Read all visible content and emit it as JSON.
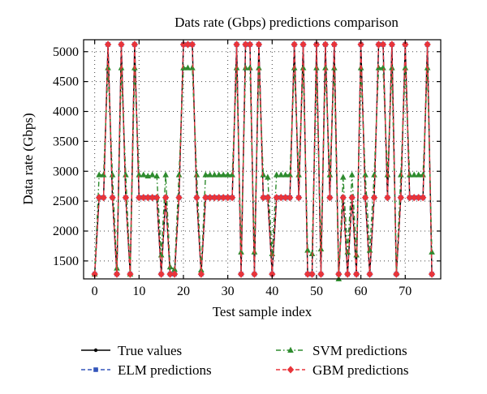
{
  "chart_data": {
    "type": "line",
    "title": "Dats rate (Gbps) predictions comparison",
    "xlabel": "Test sample index",
    "ylabel": "Data rate (Gbps)",
    "xlim": [
      -2.5,
      78
    ],
    "ylim": [
      1200,
      5200
    ],
    "x_ticks": [
      0,
      10,
      20,
      30,
      40,
      50,
      60,
      70
    ],
    "y_ticks": [
      1500,
      2000,
      2500,
      3000,
      3500,
      4000,
      4500,
      5000
    ],
    "grid": true,
    "x": [
      0,
      1,
      2,
      3,
      4,
      5,
      6,
      7,
      8,
      9,
      10,
      11,
      12,
      13,
      14,
      15,
      16,
      17,
      18,
      19,
      20,
      21,
      22,
      23,
      24,
      25,
      26,
      27,
      28,
      29,
      30,
      31,
      32,
      33,
      34,
      35,
      36,
      37,
      38,
      39,
      40,
      41,
      42,
      43,
      44,
      45,
      46,
      47,
      48,
      49,
      50,
      51,
      52,
      53,
      54,
      55,
      56,
      57,
      58,
      59,
      60,
      61,
      62,
      63,
      64,
      65,
      66,
      67,
      68,
      69,
      70,
      71,
      72,
      73,
      74,
      75,
      76
    ],
    "series": [
      {
        "name": "True values",
        "color": "#000000",
        "marker": "circle",
        "dash": "solid",
        "values": [
          1280,
          2560,
          2560,
          5120,
          2560,
          1280,
          5120,
          2560,
          1280,
          5120,
          2560,
          2560,
          2560,
          2560,
          2560,
          1280,
          2560,
          1280,
          1280,
          2560,
          5120,
          5120,
          5120,
          2560,
          1280,
          2560,
          2560,
          2560,
          2560,
          2560,
          2560,
          2560,
          5120,
          1280,
          5120,
          5120,
          1280,
          5120,
          2560,
          2560,
          1280,
          2560,
          2560,
          2560,
          2560,
          5120,
          2560,
          5120,
          1280,
          1280,
          5120,
          1280,
          5120,
          2560,
          5120,
          1280,
          2560,
          1280,
          2560,
          1280,
          5120,
          2560,
          1280,
          2560,
          5120,
          5120,
          2560,
          5120,
          1280,
          2560,
          5120,
          2560,
          2560,
          2560,
          2560,
          5120,
          1280
        ]
      },
      {
        "name": "ELM predictions",
        "color": "#3355bb",
        "marker": "square",
        "dash": "dashed",
        "values": [
          1280,
          2560,
          2560,
          5120,
          2560,
          1280,
          5120,
          2560,
          1280,
          5120,
          2560,
          2560,
          2560,
          2560,
          2560,
          1280,
          2560,
          1280,
          1280,
          2560,
          5120,
          5120,
          5120,
          2560,
          1280,
          2560,
          2560,
          2560,
          2560,
          2560,
          2560,
          2560,
          5120,
          1280,
          5120,
          5120,
          1280,
          5120,
          2560,
          2560,
          1280,
          2560,
          2560,
          2560,
          2560,
          5120,
          2560,
          5120,
          1280,
          1280,
          5120,
          1280,
          5120,
          2560,
          5120,
          1280,
          2560,
          1280,
          2560,
          1280,
          5120,
          2560,
          1280,
          2560,
          5120,
          5120,
          2560,
          5120,
          1280,
          2560,
          5120,
          2560,
          2560,
          2560,
          2560,
          5120,
          1280
        ]
      },
      {
        "name": "SVM predictions",
        "color": "#2e8b2e",
        "marker": "triangle",
        "dash": "dashdot",
        "values": [
          1280,
          2940,
          2940,
          4730,
          2940,
          1380,
          4730,
          2940,
          1280,
          4730,
          2940,
          2940,
          2920,
          2940,
          2920,
          1600,
          2940,
          1400,
          1360,
          2940,
          4730,
          4730,
          4730,
          2940,
          1350,
          2940,
          2940,
          2940,
          2940,
          2940,
          2940,
          2940,
          4730,
          1650,
          4730,
          4730,
          1650,
          4730,
          2940,
          2900,
          1620,
          2940,
          2940,
          2940,
          2940,
          4730,
          2940,
          4730,
          1680,
          1620,
          4730,
          1700,
          4730,
          2940,
          4730,
          1200,
          2900,
          1650,
          2940,
          1600,
          4730,
          2940,
          1680,
          2940,
          4730,
          4730,
          2940,
          4730,
          1300,
          2940,
          4730,
          2940,
          2940,
          2940,
          2940,
          4730,
          1650
        ]
      },
      {
        "name": "GBM predictions",
        "color": "#e8343a",
        "marker": "diamond",
        "dash": "dashed",
        "values": [
          1280,
          2560,
          2560,
          5120,
          2560,
          1280,
          5120,
          2560,
          1280,
          5120,
          2560,
          2560,
          2560,
          2560,
          2560,
          1280,
          2560,
          1280,
          1280,
          2560,
          5120,
          5120,
          5120,
          2560,
          1280,
          2560,
          2560,
          2560,
          2560,
          2560,
          2560,
          2560,
          5120,
          1280,
          5120,
          5120,
          1280,
          5120,
          2560,
          2560,
          1280,
          2560,
          2560,
          2560,
          2560,
          5120,
          2560,
          5120,
          1280,
          1280,
          5120,
          1280,
          5120,
          2560,
          5120,
          1280,
          2560,
          1280,
          2560,
          1280,
          5120,
          2560,
          1280,
          2560,
          5120,
          5120,
          2560,
          5120,
          1280,
          2560,
          5120,
          2560,
          2560,
          2560,
          2560,
          5120,
          1280
        ]
      }
    ],
    "legend_placement": "bottom"
  }
}
